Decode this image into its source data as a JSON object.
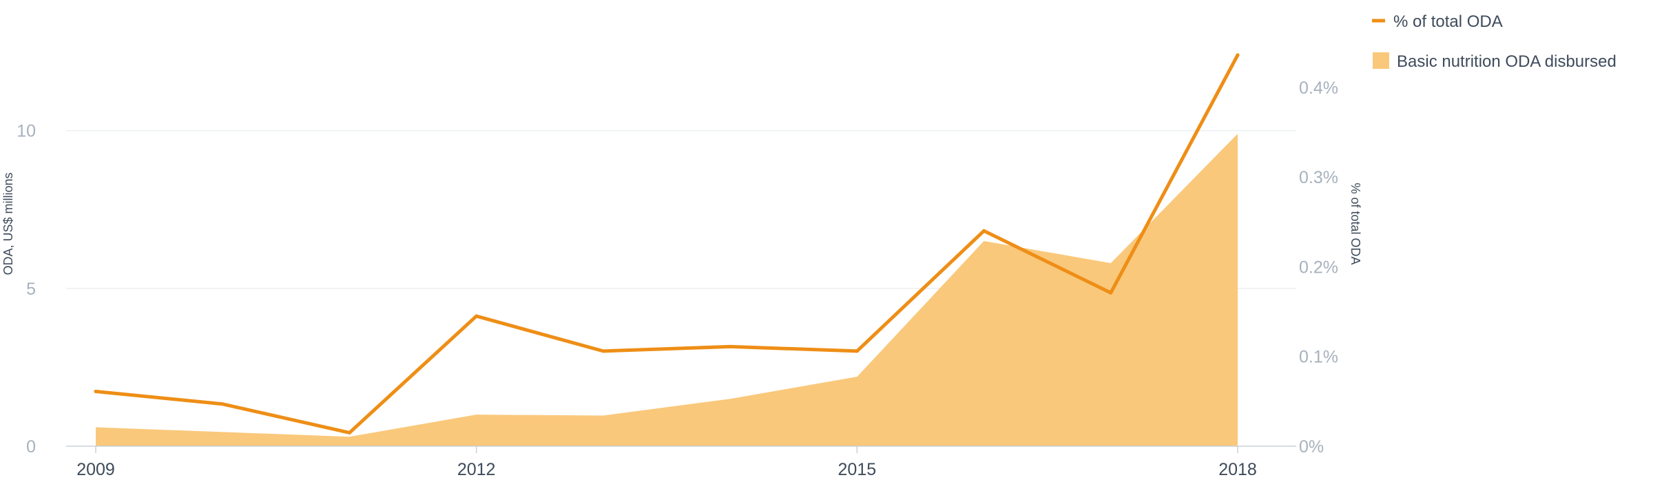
{
  "chart_data": {
    "type": "line",
    "categories": [
      "2009",
      "2010",
      "2011",
      "2012",
      "2013",
      "2014",
      "2015",
      "2016",
      "2017",
      "2018"
    ],
    "x_tick_labels": [
      "2009",
      "2012",
      "2015",
      "2018"
    ],
    "series": [
      {
        "name": "Basic nutrition ODA disbursed",
        "kind": "area",
        "axis": "left",
        "values": [
          0.6,
          0.45,
          0.3,
          1.0,
          0.97,
          1.5,
          2.2,
          6.5,
          5.8,
          9.9
        ],
        "color": "#fac87b"
      },
      {
        "name": "% of total ODA",
        "kind": "line",
        "axis": "right",
        "values": [
          0.061,
          0.047,
          0.015,
          0.145,
          0.106,
          0.111,
          0.106,
          0.24,
          0.171,
          0.436
        ],
        "color": "#ee8e16"
      }
    ],
    "y_left": {
      "label": "ODA, US$ millions",
      "ticks": [
        "0",
        "5",
        "10"
      ],
      "tick_values": [
        0,
        5,
        10
      ],
      "range": [
        0,
        13.7
      ]
    },
    "y_right": {
      "label": "% of total ODA",
      "ticks": [
        "0%",
        "0.1%",
        "0.2%",
        "0.3%",
        "0.4%"
      ],
      "tick_values": [
        0,
        0.1,
        0.2,
        0.3,
        0.4
      ],
      "range": [
        0,
        0.482
      ]
    },
    "grid": true,
    "legend_position": "top-right"
  },
  "colors": {
    "grid": "#eceff2",
    "axis": "#c9d0d8"
  }
}
